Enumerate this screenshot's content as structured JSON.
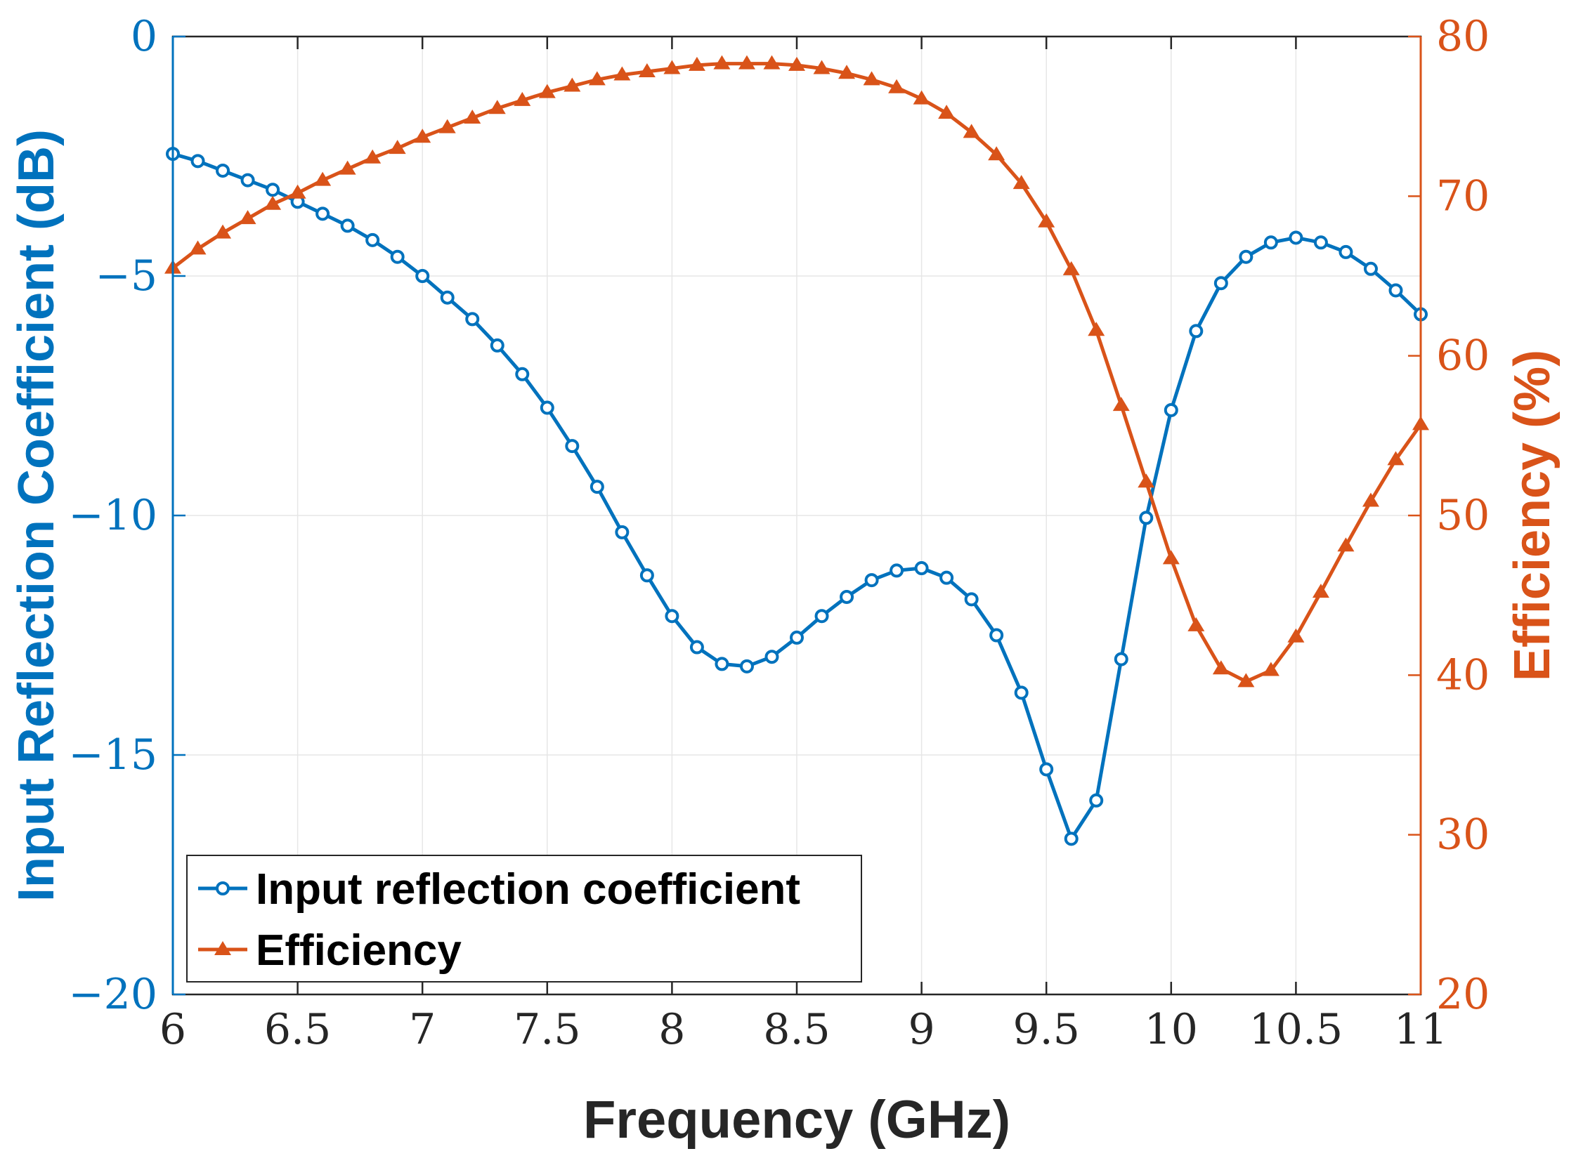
{
  "chart_data": {
    "type": "line",
    "xlabel": "Frequency (GHz)",
    "ylabel_left": "Input Reflection Coefficient (dB)",
    "ylabel_right": "Efficiency (%)",
    "xlim": [
      6,
      11
    ],
    "ylim_left": [
      -20,
      0
    ],
    "ylim_right": [
      20,
      80
    ],
    "x_ticks": [
      6,
      6.5,
      7,
      7.5,
      8,
      8.5,
      9,
      9.5,
      10,
      10.5,
      11
    ],
    "x_tick_labels": [
      "6",
      "6.5",
      "7",
      "7.5",
      "8",
      "8.5",
      "9",
      "9.5",
      "10",
      "10.5",
      "11"
    ],
    "y_left_ticks": [
      0,
      -5,
      -10,
      -15,
      -20
    ],
    "y_left_tick_labels": [
      "0",
      "−5",
      "−10",
      "−15",
      "−20"
    ],
    "y_right_ticks": [
      80,
      70,
      60,
      50,
      40,
      30,
      20
    ],
    "y_right_tick_labels": [
      "80",
      "70",
      "60",
      "50",
      "40",
      "30",
      "20"
    ],
    "grid": true,
    "legend_position": "bottom-left",
    "colors": {
      "reflection": "#0072BD",
      "efficiency": "#D95319",
      "grid": "#e6e6e6",
      "frame": "#262626"
    },
    "series": [
      {
        "name": "Input reflection coefficient",
        "axis": "left",
        "marker": "circle",
        "x": [
          6.0,
          6.1,
          6.2,
          6.3,
          6.4,
          6.5,
          6.6,
          6.7,
          6.8,
          6.9,
          7.0,
          7.1,
          7.2,
          7.3,
          7.4,
          7.5,
          7.6,
          7.7,
          7.8,
          7.9,
          8.0,
          8.1,
          8.2,
          8.3,
          8.4,
          8.5,
          8.6,
          8.7,
          8.8,
          8.9,
          9.0,
          9.1,
          9.2,
          9.3,
          9.4,
          9.5,
          9.6,
          9.7,
          9.8,
          9.9,
          10.0,
          10.1,
          10.2,
          10.3,
          10.4,
          10.5,
          10.6,
          10.7,
          10.8,
          10.9,
          11.0
        ],
        "values": [
          -2.45,
          -2.6,
          -2.8,
          -3.0,
          -3.2,
          -3.45,
          -3.7,
          -3.95,
          -4.25,
          -4.6,
          -5.0,
          -5.45,
          -5.9,
          -6.45,
          -7.05,
          -7.75,
          -8.55,
          -9.4,
          -10.35,
          -11.25,
          -12.1,
          -12.75,
          -13.1,
          -13.15,
          -12.95,
          -12.55,
          -12.1,
          -11.7,
          -11.35,
          -11.15,
          -11.1,
          -11.3,
          -11.75,
          -12.5,
          -13.7,
          -15.3,
          -16.75,
          -15.95,
          -13.0,
          -10.05,
          -7.8,
          -6.15,
          -5.15,
          -4.6,
          -4.3,
          -4.2,
          -4.3,
          -4.5,
          -4.85,
          -5.3,
          -5.8
        ]
      },
      {
        "name": "Efficiency",
        "axis": "right",
        "marker": "triangle",
        "x": [
          6.0,
          6.1,
          6.2,
          6.3,
          6.4,
          6.5,
          6.6,
          6.7,
          6.8,
          6.9,
          7.0,
          7.1,
          7.2,
          7.3,
          7.4,
          7.5,
          7.6,
          7.7,
          7.8,
          7.9,
          8.0,
          8.1,
          8.2,
          8.3,
          8.4,
          8.5,
          8.6,
          8.7,
          8.8,
          8.9,
          9.0,
          9.1,
          9.2,
          9.3,
          9.4,
          9.5,
          9.6,
          9.7,
          9.8,
          9.9,
          10.0,
          10.1,
          10.2,
          10.3,
          10.4,
          10.5,
          10.6,
          10.7,
          10.8,
          10.9,
          11.0
        ],
        "values": [
          65.5,
          66.7,
          67.7,
          68.6,
          69.5,
          70.2,
          71.0,
          71.7,
          72.4,
          73.0,
          73.7,
          74.3,
          74.9,
          75.5,
          76.0,
          76.5,
          76.9,
          77.3,
          77.6,
          77.8,
          78.0,
          78.2,
          78.3,
          78.3,
          78.3,
          78.2,
          78.0,
          77.7,
          77.3,
          76.8,
          76.1,
          75.2,
          74.0,
          72.6,
          70.8,
          68.4,
          65.4,
          61.6,
          56.9,
          52.1,
          47.3,
          43.1,
          40.4,
          39.6,
          40.3,
          42.4,
          45.2,
          48.1,
          50.9,
          53.5,
          55.7
        ]
      }
    ]
  }
}
